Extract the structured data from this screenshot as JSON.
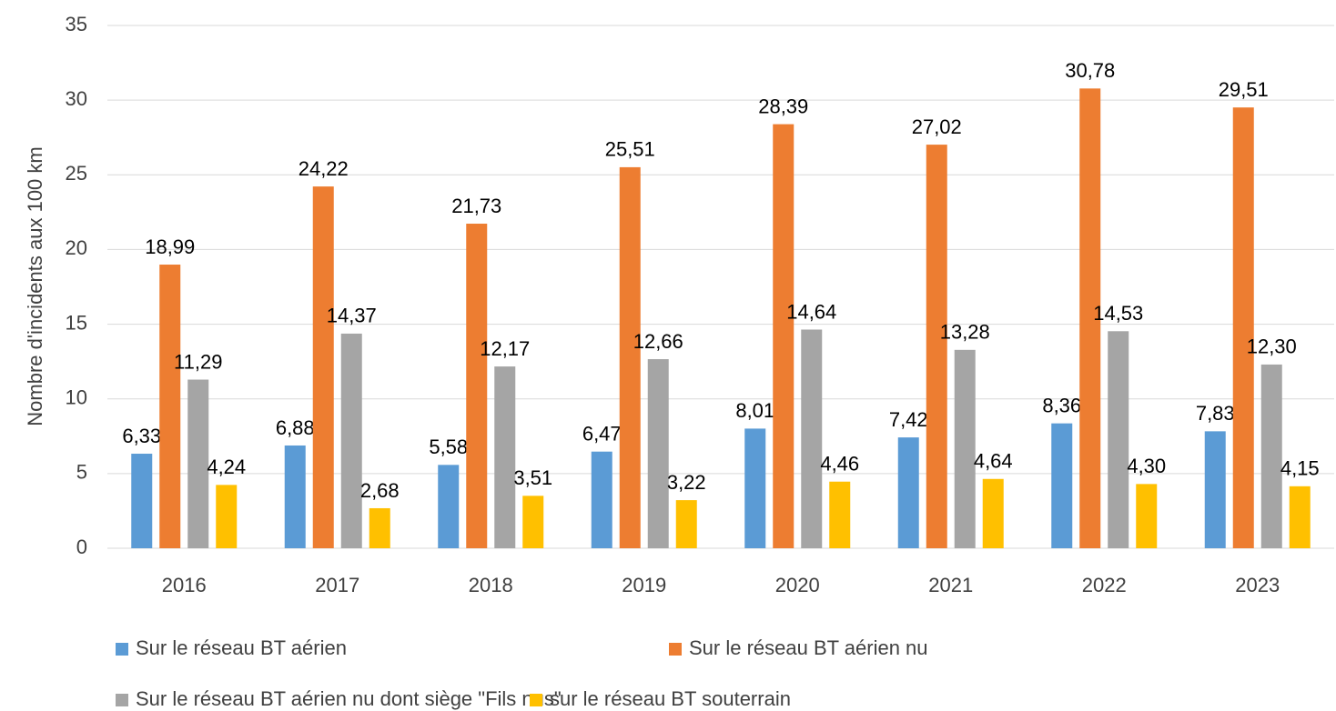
{
  "chart_data": {
    "type": "bar",
    "y_label": "Nombre d'incidents aux 100 km",
    "categories": [
      "2016",
      "2017",
      "2018",
      "2019",
      "2020",
      "2021",
      "2022",
      "2023"
    ],
    "series": [
      {
        "name": "Sur le réseau BT aérien",
        "color": "#5b9bd5",
        "values": [
          6.33,
          6.88,
          5.58,
          6.47,
          8.01,
          7.42,
          8.36,
          7.83
        ],
        "value_labels": [
          "6,33",
          "6,88",
          "5,58",
          "6,47",
          "8,01",
          "7,42",
          "8,36",
          "7,83"
        ]
      },
      {
        "name": "Sur le réseau BT aérien nu",
        "color": "#ed7d31",
        "values": [
          18.99,
          24.22,
          21.73,
          25.51,
          28.39,
          27.02,
          30.78,
          29.51
        ],
        "value_labels": [
          "18,99",
          "24,22",
          "21,73",
          "25,51",
          "28,39",
          "27,02",
          "30,78",
          "29,51"
        ]
      },
      {
        "name": "Sur le réseau BT aérien nu dont siège \"Fils nus\"",
        "color": "#a5a5a5",
        "values": [
          11.29,
          14.37,
          12.17,
          12.66,
          14.64,
          13.28,
          14.53,
          12.3
        ],
        "value_labels": [
          "11,29",
          "14,37",
          "12,17",
          "12,66",
          "14,64",
          "13,28",
          "14,53",
          "12,30"
        ]
      },
      {
        "name": "sur le réseau BT souterrain",
        "color": "#ffc000",
        "values": [
          4.24,
          2.68,
          3.51,
          3.22,
          4.46,
          4.64,
          4.3,
          4.15
        ],
        "value_labels": [
          "4,24",
          "2,68",
          "3,51",
          "3,22",
          "4,46",
          "4,64",
          "4,30",
          "4,15"
        ]
      }
    ],
    "ylim": [
      0,
      35
    ],
    "yticks": [
      0,
      5,
      10,
      15,
      20,
      25,
      30,
      35
    ],
    "grid": true
  }
}
